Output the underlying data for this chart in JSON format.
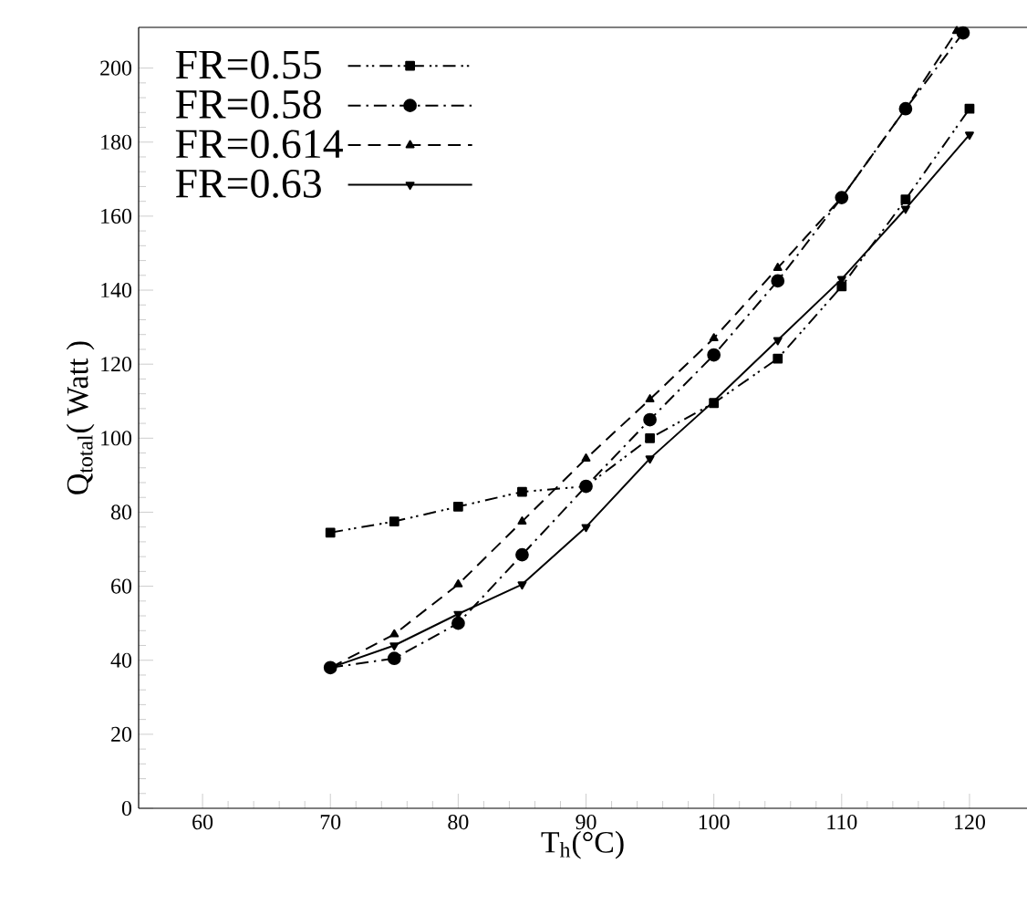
{
  "chart_data": {
    "type": "line",
    "xlabel": "T$_{h}$(°C)",
    "ylabel": "Q$_{total}$( Watt )",
    "xlim": [
      55,
      124.5
    ],
    "ylim": [
      0,
      211
    ],
    "xticks": [
      60,
      70,
      80,
      90,
      100,
      110,
      120
    ],
    "yticks": [
      0,
      20,
      40,
      60,
      80,
      100,
      120,
      140,
      160,
      180,
      200
    ],
    "grid": false,
    "legend": "top left",
    "series": [
      {
        "name": "FR=0.55",
        "color": "#000000",
        "marker": "square",
        "line_style": "dashdotdotted",
        "x": [
          70,
          75,
          80,
          85,
          90,
          95,
          100,
          105,
          110,
          115,
          120
        ],
        "values": [
          74.5,
          77.5,
          81.5,
          85.5,
          87,
          100,
          109.5,
          121.5,
          141,
          164.5,
          189
        ]
      },
      {
        "name": "FR=0.58",
        "color": "#000000",
        "marker": "circle",
        "line_style": "dashdotted",
        "x": [
          70,
          75,
          80,
          85,
          90,
          95,
          100,
          105,
          110,
          115,
          119.5
        ],
        "values": [
          38,
          40.5,
          50,
          68.5,
          87,
          105,
          122.5,
          142.5,
          165,
          189,
          209.5
        ]
      },
      {
        "name": "FR=0.614",
        "color": "#000000",
        "marker": "triangle",
        "line_style": "dashed",
        "x": [
          70,
          75,
          80,
          85,
          90,
          95,
          100,
          105,
          110,
          115,
          119
        ],
        "values": [
          38,
          47,
          60.5,
          77.5,
          94.5,
          110.5,
          127,
          146,
          165,
          189,
          210
        ]
      },
      {
        "name": "FR=0.63",
        "color": "#000000",
        "marker": "triangle-down",
        "line_style": "solid",
        "x": [
          70,
          75,
          80,
          85,
          90,
          95,
          100,
          105,
          110,
          115,
          120
        ],
        "values": [
          38,
          44,
          52.5,
          60.5,
          76,
          94.5,
          110,
          126.5,
          143,
          162,
          182
        ]
      }
    ]
  }
}
